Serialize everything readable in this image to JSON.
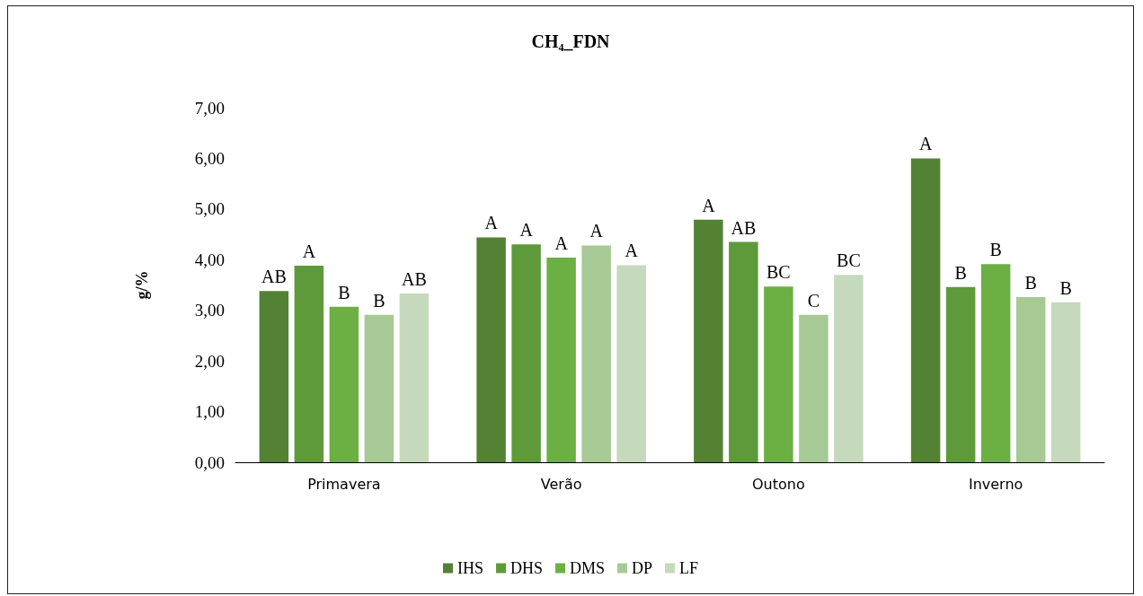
{
  "chart_data": {
    "type": "bar",
    "title": "CH₄_FDN",
    "ylabel": "g/%",
    "categories": [
      "Primavera",
      "Verão",
      "Outono",
      "Inverno"
    ],
    "series": [
      {
        "name": "IHS",
        "color": "#548235",
        "values": [
          3.38,
          4.44,
          4.79,
          6.0
        ],
        "value_labels": [
          "AB",
          "A",
          "A",
          "A"
        ]
      },
      {
        "name": "DHS",
        "color": "#5e9a3a",
        "values": [
          3.88,
          4.3,
          4.35,
          3.46
        ],
        "value_labels": [
          "A",
          "A",
          "AB",
          "B"
        ]
      },
      {
        "name": "DMS",
        "color": "#6cb044",
        "values": [
          3.07,
          4.04,
          3.47,
          3.91
        ],
        "value_labels": [
          "B",
          "A",
          "BC",
          "B"
        ]
      },
      {
        "name": "DP",
        "color": "#a6c995",
        "values": [
          2.91,
          4.28,
          2.91,
          3.26
        ],
        "value_labels": [
          "B",
          "A",
          "C",
          "B"
        ]
      },
      {
        "name": "LF",
        "color": "#c5d9bd",
        "values": [
          3.33,
          3.89,
          3.7,
          3.16
        ],
        "value_labels": [
          "AB",
          "A",
          "BC",
          "B"
        ]
      }
    ],
    "ylim": [
      0,
      7
    ],
    "yticks": [
      {
        "value": 0,
        "label": "0,00"
      },
      {
        "value": 1,
        "label": "1,00"
      },
      {
        "value": 2,
        "label": "2,00"
      },
      {
        "value": 3,
        "label": "3,00"
      },
      {
        "value": 4,
        "label": "4,00"
      },
      {
        "value": 5,
        "label": "5,00"
      },
      {
        "value": 6,
        "label": "6,00"
      },
      {
        "value": 7,
        "label": "7,00"
      }
    ],
    "grid": false,
    "legend": "bottom"
  }
}
